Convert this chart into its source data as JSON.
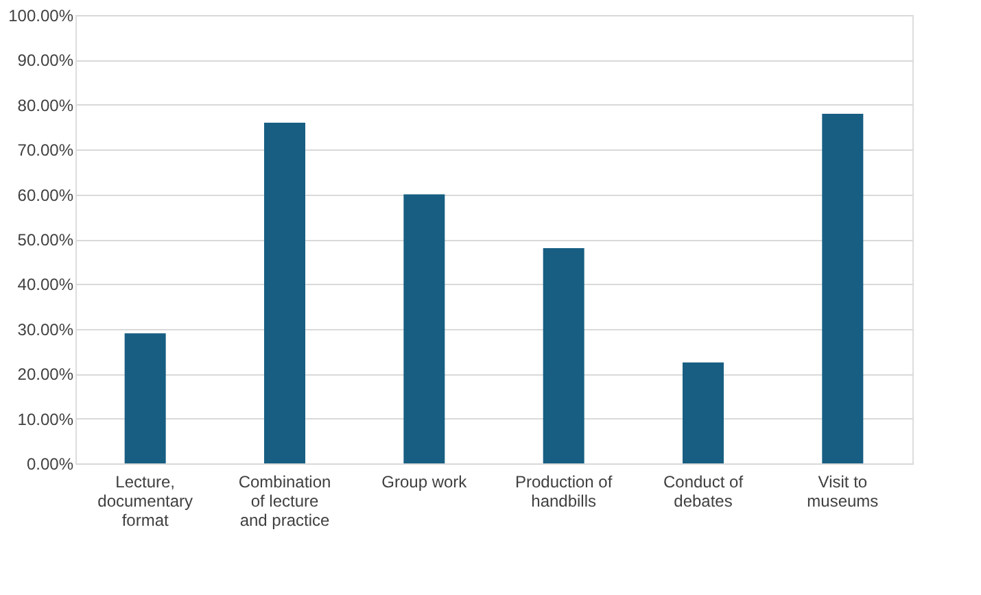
{
  "chart_data": {
    "type": "bar",
    "categories": [
      "Lecture, documentary format",
      "Combination of lecture and practice",
      "Group work",
      "Production of handbills",
      "Conduct of debates",
      "Visit to museums"
    ],
    "series": [
      {
        "color": "#175e82",
        "values": [
          29,
          76,
          60,
          48,
          22.5,
          78
        ]
      }
    ],
    "ylim": [
      0,
      100
    ],
    "yticks": [
      {
        "value": 0,
        "label": "0.00%"
      },
      {
        "value": 10,
        "label": "10.00%"
      },
      {
        "value": 20,
        "label": "20.00%"
      },
      {
        "value": 30,
        "label": "30.00%"
      },
      {
        "value": 40,
        "label": "40.00%"
      },
      {
        "value": 50,
        "label": "50.00%"
      },
      {
        "value": 60,
        "label": "60.00%"
      },
      {
        "value": 70,
        "label": "70.00%"
      },
      {
        "value": 80,
        "label": "80.00%"
      },
      {
        "value": 90,
        "label": "90.00%"
      },
      {
        "value": 100,
        "label": "100.00%"
      }
    ],
    "grid": "y"
  }
}
